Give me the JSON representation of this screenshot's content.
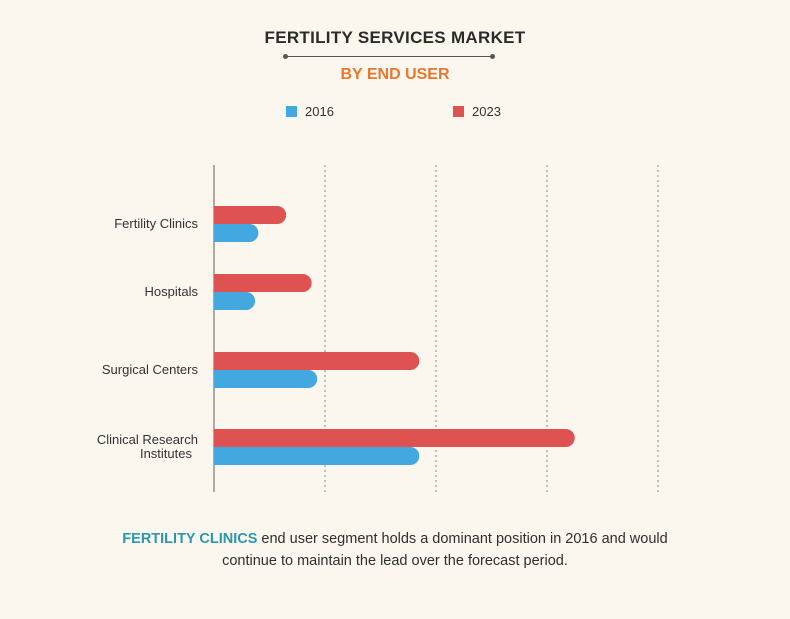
{
  "colors": {
    "series_2016": "#44a8e0",
    "series_2023": "#de5252",
    "subtitle": "#e8772e",
    "highlight": "#2a97ad",
    "axis": "#777777",
    "grid": "#888888"
  },
  "chart_data": {
    "type": "bar",
    "orientation": "horizontal",
    "title": "FERTILITY SERVICES MARKET",
    "subtitle": "BY END USER",
    "categories": [
      "Fertility Clinics",
      "Hospitals",
      "Surgical Centers",
      "Clinical Research Institutes"
    ],
    "series": [
      {
        "name": "2023",
        "values": [
          0.65,
          0.88,
          1.85,
          3.25
        ]
      },
      {
        "name": "2016",
        "values": [
          0.4,
          0.37,
          0.93,
          1.85
        ]
      }
    ],
    "xlim": [
      0,
      4
    ],
    "grid": true,
    "grid_style": "dotted",
    "legend_position": "top"
  },
  "legend": [
    {
      "label": "2016"
    },
    {
      "label": "2023"
    }
  ],
  "footer": {
    "highlight": "FERTILITY CLINICS",
    "line1_rest": " end user segment holds a dominant position in 2016 and would",
    "line2": "continue to maintain the lead over the forecast period."
  }
}
